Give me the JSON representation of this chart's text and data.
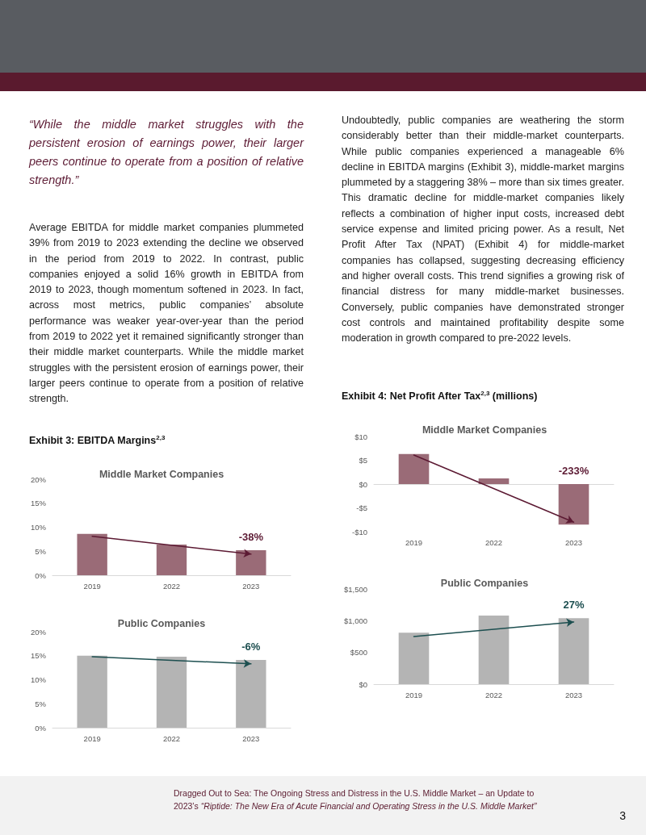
{
  "chart_data": [
    {
      "type": "other",
      "annotations": [
        "“While the middle market struggles with the persistent erosion of earnings power, their larger peers continue to operate from a position of relative strength.”",
        "Average EBITDA for middle market companies plummeted 39% from 2019 to 2023 extending the decline we observed in the period from 2019 to 2022. In contrast, public companies enjoyed a solid 16% growth in EBITDA from 2019 to 2023, though momentum softened in 2023. In fact, across most metrics, public companies’ absolute performance was weaker year-over-year than the period from 2019 to 2022 yet it remained significantly stronger than their middle market counterparts. While the middle market struggles with the persistent erosion of earnings power, their larger peers continue to operate from a position of relative strength."
      ]
    },
    {
      "type": "other",
      "annotations": [
        "Undoubtedly, public companies are weathering the storm considerably better than their middle-market counterparts. While public companies experienced a manageable 6% decline in EBITDA margins (Exhibit 3), middle-market margins plummeted by a staggering 38% – more than six times greater. This dramatic decline for middle-market companies likely reflects a combination of higher input costs, increased debt service expense and limited pricing power. As a result, Net Profit After Tax (NPAT) (Exhibit 4) for middle-market companies has collapsed, suggesting decreasing efficiency and higher overall costs. This trend signifies a growing risk of financial distress for many middle-market businesses. Conversely, public companies have demonstrated stronger cost controls and maintained profitability despite some moderation in growth compared to pre-2022 levels."
      ]
    },
    {
      "type": "bar",
      "title": "Exhibit 3: EBITDA Margins$^{2,3}$",
      "subtitle": "Middle Market Companies",
      "categories": [
        "2019",
        "2022",
        "2023"
      ],
      "series": [
        {
          "type": "bar",
          "color": "#9a6b77",
          "values": [
            8.6,
            6.4,
            5.2
          ]
        },
        {
          "type": "line",
          "color": "#5c1a33",
          "values": [
            8.1,
            null,
            4.4
          ]
        }
      ],
      "ylim": [
        0,
        20
      ],
      "yticks": [
        {
          "value": 0,
          "label": "0%"
        },
        {
          "value": 5,
          "label": "5%"
        },
        {
          "value": 10,
          "label": "10%"
        },
        {
          "value": 15,
          "label": "15%"
        },
        {
          "value": 20,
          "label": "20%"
        }
      ],
      "annotations": [
        "-38%"
      ]
    },
    {
      "type": "bar",
      "title": "Public Companies",
      "categories": [
        "2019",
        "2022",
        "2023"
      ],
      "series": [
        {
          "type": "bar",
          "color": "#b4b4b4",
          "values": [
            15.0,
            14.8,
            14.1
          ]
        },
        {
          "type": "line",
          "color": "#1d4f50",
          "values": [
            14.8,
            null,
            13.3
          ]
        }
      ],
      "ylim": [
        0,
        20
      ],
      "yticks": [
        {
          "value": 0,
          "label": "0%"
        },
        {
          "value": 5,
          "label": "5%"
        },
        {
          "value": 10,
          "label": "10%"
        },
        {
          "value": 15,
          "label": "15%"
        },
        {
          "value": 20,
          "label": "20%"
        }
      ],
      "annotations": [
        "-6%"
      ]
    },
    {
      "type": "bar",
      "title": "Exhibit 4: Net Profit After Tax$^{2,3}$ (millions)",
      "subtitle": "Middle Market Companies",
      "categories": [
        "2019",
        "2022",
        "2023"
      ],
      "series": [
        {
          "type": "bar",
          "color": "#9a6b77",
          "values": [
            6.3,
            1.2,
            -8.5
          ]
        },
        {
          "type": "line",
          "color": "#5c1a33",
          "values": [
            6.1,
            null,
            -8.0
          ]
        }
      ],
      "ylim": [
        -10,
        10
      ],
      "yticks": [
        {
          "value": -10,
          "label": "-$10"
        },
        {
          "value": -5,
          "label": "-$5"
        },
        {
          "value": 0,
          "label": "$0"
        },
        {
          "value": 5,
          "label": "$5"
        },
        {
          "value": 10,
          "label": "$10"
        }
      ],
      "annotations": [
        "-233%"
      ]
    },
    {
      "type": "bar",
      "title": "Public Companies",
      "categories": [
        "2019",
        "2022",
        "2023"
      ],
      "series": [
        {
          "type": "bar",
          "color": "#b4b4b4",
          "values": [
            810,
            1080,
            1040
          ]
        },
        {
          "type": "line",
          "color": "#1d4f50",
          "values": [
            750,
            null,
            980
          ]
        }
      ],
      "ylim": [
        0,
        1500
      ],
      "yticks": [
        {
          "value": 0,
          "label": "$0"
        },
        {
          "value": 500,
          "label": "$500"
        },
        {
          "value": 1000,
          "label": "$1,000"
        },
        {
          "value": 1500,
          "label": "$1,500"
        }
      ],
      "annotations": [
        "27%"
      ]
    },
    {
      "type": "other",
      "annotations": [
        "Dragged Out to Sea: The Ongoing Stress and Distress in the U.S. Middle Market – an Update to 2023’s ",
        "“Riptide: The New Era of Acute Financial and Operating Stress in the U.S. Middle Market”",
        "3"
      ]
    }
  ]
}
